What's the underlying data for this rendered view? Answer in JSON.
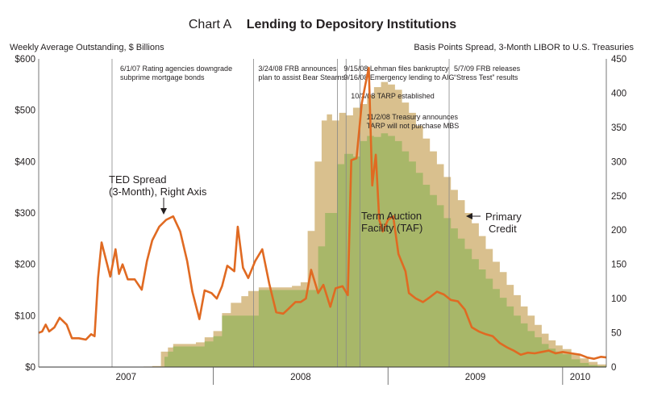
{
  "header": {
    "chart_label": "Chart A",
    "chart_title": "Lending to Depository Institutions",
    "left_axis_caption": "Weekly Average Outstanding, $ Billions",
    "right_axis_caption": "Basis Points Spread, 3-Month LIBOR to U.S. Treasuries"
  },
  "colors": {
    "primary_credit": "#d9c08e",
    "taf": "#a8b769",
    "ted": "#e06a22",
    "event_line": "#888888"
  },
  "chart_data": {
    "type": "area",
    "title": "Lending to Depository Institutions",
    "ylabel": "Weekly Average Outstanding, $ Billions",
    "y2label": "Basis Points Spread, 3-Month LIBOR to U.S. Treasuries",
    "xlim": [
      2007.0,
      2010.25
    ],
    "ylim": [
      0,
      600
    ],
    "y2lim": [
      0,
      450
    ],
    "left_ticks": [
      {
        "v": 0,
        "label": "$0"
      },
      {
        "v": 100,
        "label": "$100"
      },
      {
        "v": 200,
        "label": "$200"
      },
      {
        "v": 300,
        "label": "$300"
      },
      {
        "v": 400,
        "label": "$400"
      },
      {
        "v": 500,
        "label": "$500"
      },
      {
        "v": 600,
        "label": "$600"
      }
    ],
    "right_ticks": [
      {
        "v": 0,
        "label": "0"
      },
      {
        "v": 50,
        "label": "50"
      },
      {
        "v": 100,
        "label": "100"
      },
      {
        "v": 150,
        "label": "150"
      },
      {
        "v": 200,
        "label": "200"
      },
      {
        "v": 250,
        "label": "250"
      },
      {
        "v": 300,
        "label": "300"
      },
      {
        "v": 350,
        "label": "350"
      },
      {
        "v": 400,
        "label": "400"
      },
      {
        "v": 450,
        "label": "450"
      }
    ],
    "year_labels": [
      {
        "x": 2007.5,
        "label": "2007"
      },
      {
        "x": 2008.5,
        "label": "2008"
      },
      {
        "x": 2009.5,
        "label": "2009"
      },
      {
        "x": 2010.1,
        "label": "2010"
      }
    ],
    "year_boundaries": [
      2008.0,
      2009.0,
      2010.0
    ],
    "grid": false,
    "series": [
      {
        "name": "Primary Credit",
        "kind": "area",
        "axis": "left",
        "points": [
          [
            2007.0,
            0
          ],
          [
            2007.45,
            0
          ],
          [
            2007.6,
            1
          ],
          [
            2007.65,
            2
          ],
          [
            2007.7,
            30
          ],
          [
            2007.74,
            38
          ],
          [
            2007.77,
            45
          ],
          [
            2007.9,
            48
          ],
          [
            2007.95,
            58
          ],
          [
            2008.0,
            70
          ],
          [
            2008.05,
            105
          ],
          [
            2008.1,
            125
          ],
          [
            2008.16,
            138
          ],
          [
            2008.2,
            148
          ],
          [
            2008.26,
            155
          ],
          [
            2008.45,
            158
          ],
          [
            2008.5,
            165
          ],
          [
            2008.54,
            265
          ],
          [
            2008.58,
            400
          ],
          [
            2008.62,
            480
          ],
          [
            2008.65,
            492
          ],
          [
            2008.68,
            480
          ],
          [
            2008.72,
            495
          ],
          [
            2008.76,
            490
          ],
          [
            2008.8,
            505
          ],
          [
            2008.84,
            512
          ],
          [
            2008.88,
            530
          ],
          [
            2008.92,
            545
          ],
          [
            2008.96,
            555
          ],
          [
            2009.0,
            550
          ],
          [
            2009.04,
            540
          ],
          [
            2009.08,
            515
          ],
          [
            2009.12,
            495
          ],
          [
            2009.16,
            470
          ],
          [
            2009.2,
            445
          ],
          [
            2009.24,
            420
          ],
          [
            2009.28,
            395
          ],
          [
            2009.32,
            370
          ],
          [
            2009.36,
            345
          ],
          [
            2009.4,
            325
          ],
          [
            2009.44,
            300
          ],
          [
            2009.48,
            280
          ],
          [
            2009.52,
            255
          ],
          [
            2009.56,
            230
          ],
          [
            2009.6,
            205
          ],
          [
            2009.64,
            185
          ],
          [
            2009.68,
            160
          ],
          [
            2009.72,
            140
          ],
          [
            2009.76,
            118
          ],
          [
            2009.8,
            100
          ],
          [
            2009.84,
            82
          ],
          [
            2009.88,
            65
          ],
          [
            2009.92,
            52
          ],
          [
            2009.96,
            42
          ],
          [
            2010.0,
            35
          ],
          [
            2010.05,
            25
          ],
          [
            2010.1,
            17
          ],
          [
            2010.15,
            10
          ],
          [
            2010.2,
            5
          ],
          [
            2010.25,
            3
          ]
        ]
      },
      {
        "name": "Term Auction Facility (TAF)",
        "kind": "area",
        "axis": "left",
        "points": [
          [
            2007.0,
            0
          ],
          [
            2007.7,
            0
          ],
          [
            2007.72,
            20
          ],
          [
            2007.74,
            30
          ],
          [
            2007.77,
            40
          ],
          [
            2007.9,
            40
          ],
          [
            2007.95,
            50
          ],
          [
            2008.0,
            60
          ],
          [
            2008.05,
            100
          ],
          [
            2008.2,
            100
          ],
          [
            2008.26,
            150
          ],
          [
            2008.45,
            150
          ],
          [
            2008.5,
            150
          ],
          [
            2008.56,
            150
          ],
          [
            2008.6,
            235
          ],
          [
            2008.64,
            300
          ],
          [
            2008.68,
            300
          ],
          [
            2008.71,
            395
          ],
          [
            2008.75,
            415
          ],
          [
            2008.8,
            410
          ],
          [
            2008.84,
            440
          ],
          [
            2008.88,
            450
          ],
          [
            2008.92,
            448
          ],
          [
            2008.96,
            455
          ],
          [
            2009.0,
            450
          ],
          [
            2009.04,
            440
          ],
          [
            2009.08,
            420
          ],
          [
            2009.12,
            400
          ],
          [
            2009.16,
            378
          ],
          [
            2009.2,
            355
          ],
          [
            2009.24,
            335
          ],
          [
            2009.28,
            315
          ],
          [
            2009.32,
            290
          ],
          [
            2009.36,
            270
          ],
          [
            2009.4,
            250
          ],
          [
            2009.44,
            230
          ],
          [
            2009.48,
            210
          ],
          [
            2009.52,
            190
          ],
          [
            2009.56,
            172
          ],
          [
            2009.6,
            152
          ],
          [
            2009.64,
            135
          ],
          [
            2009.68,
            118
          ],
          [
            2009.72,
            100
          ],
          [
            2009.76,
            85
          ],
          [
            2009.8,
            70
          ],
          [
            2009.84,
            58
          ],
          [
            2009.88,
            45
          ],
          [
            2009.92,
            36
          ],
          [
            2009.96,
            30
          ],
          [
            2010.0,
            25
          ],
          [
            2010.05,
            15
          ],
          [
            2010.1,
            8
          ],
          [
            2010.15,
            4
          ],
          [
            2010.2,
            2
          ],
          [
            2010.25,
            1
          ]
        ]
      },
      {
        "name": "TED Spread (3-Month), Right Axis",
        "kind": "line",
        "axis": "right",
        "points": [
          [
            2007.0,
            50
          ],
          [
            2007.02,
            52
          ],
          [
            2007.04,
            62
          ],
          [
            2007.06,
            52
          ],
          [
            2007.09,
            58
          ],
          [
            2007.12,
            72
          ],
          [
            2007.16,
            62
          ],
          [
            2007.19,
            42
          ],
          [
            2007.23,
            42
          ],
          [
            2007.27,
            40
          ],
          [
            2007.3,
            48
          ],
          [
            2007.32,
            45
          ],
          [
            2007.34,
            130
          ],
          [
            2007.36,
            182
          ],
          [
            2007.38,
            162
          ],
          [
            2007.41,
            132
          ],
          [
            2007.44,
            172
          ],
          [
            2007.46,
            136
          ],
          [
            2007.48,
            150
          ],
          [
            2007.51,
            128
          ],
          [
            2007.55,
            128
          ],
          [
            2007.59,
            113
          ],
          [
            2007.62,
            155
          ],
          [
            2007.65,
            185
          ],
          [
            2007.69,
            205
          ],
          [
            2007.73,
            215
          ],
          [
            2007.77,
            220
          ],
          [
            2007.81,
            198
          ],
          [
            2007.85,
            155
          ],
          [
            2007.88,
            110
          ],
          [
            2007.92,
            70
          ],
          [
            2007.95,
            112
          ],
          [
            2007.99,
            108
          ],
          [
            2008.02,
            100
          ],
          [
            2008.05,
            118
          ],
          [
            2008.08,
            148
          ],
          [
            2008.12,
            140
          ],
          [
            2008.14,
            205
          ],
          [
            2008.17,
            145
          ],
          [
            2008.2,
            130
          ],
          [
            2008.24,
            155
          ],
          [
            2008.28,
            172
          ],
          [
            2008.32,
            122
          ],
          [
            2008.36,
            80
          ],
          [
            2008.4,
            78
          ],
          [
            2008.43,
            85
          ],
          [
            2008.47,
            95
          ],
          [
            2008.5,
            95
          ],
          [
            2008.53,
            100
          ],
          [
            2008.56,
            142
          ],
          [
            2008.6,
            108
          ],
          [
            2008.63,
            120
          ],
          [
            2008.67,
            88
          ],
          [
            2008.7,
            115
          ],
          [
            2008.74,
            118
          ],
          [
            2008.77,
            105
          ],
          [
            2008.79,
            302
          ],
          [
            2008.82,
            305
          ],
          [
            2008.85,
            385
          ],
          [
            2008.87,
            412
          ],
          [
            2008.89,
            437
          ],
          [
            2008.91,
            265
          ],
          [
            2008.93,
            310
          ],
          [
            2008.95,
            215
          ],
          [
            2008.97,
            198
          ],
          [
            2009.0,
            215
          ],
          [
            2009.03,
            220
          ],
          [
            2009.06,
            165
          ],
          [
            2009.1,
            140
          ],
          [
            2009.12,
            108
          ],
          [
            2009.16,
            100
          ],
          [
            2009.2,
            95
          ],
          [
            2009.24,
            102
          ],
          [
            2009.28,
            110
          ],
          [
            2009.32,
            106
          ],
          [
            2009.36,
            98
          ],
          [
            2009.4,
            96
          ],
          [
            2009.44,
            84
          ],
          [
            2009.48,
            58
          ],
          [
            2009.52,
            52
          ],
          [
            2009.56,
            48
          ],
          [
            2009.6,
            45
          ],
          [
            2009.64,
            35
          ],
          [
            2009.68,
            29
          ],
          [
            2009.72,
            24
          ],
          [
            2009.76,
            18
          ],
          [
            2009.8,
            21
          ],
          [
            2009.84,
            20
          ],
          [
            2009.88,
            22
          ],
          [
            2009.92,
            24
          ],
          [
            2009.96,
            20
          ],
          [
            2010.0,
            22
          ],
          [
            2010.05,
            20
          ],
          [
            2010.1,
            18
          ],
          [
            2010.14,
            14
          ],
          [
            2010.18,
            12
          ],
          [
            2010.22,
            15
          ],
          [
            2010.25,
            14
          ]
        ]
      }
    ],
    "series_labels": [
      {
        "key": "ted",
        "lines": [
          "TED Spread",
          "(3-Month), Right Axis"
        ]
      },
      {
        "key": "taf",
        "lines": [
          "Term Auction",
          "Facility (TAF)"
        ]
      },
      {
        "key": "pc",
        "lines": [
          "Primary",
          "Credit"
        ]
      }
    ],
    "events": [
      {
        "x": 2007.42,
        "lines": [
          "6/1/07 Rating agencies downgrade",
          "subprime mortgage bonds"
        ]
      },
      {
        "x": 2008.23,
        "lines": [
          "3/24/08 FRB announces",
          "plan to assist Bear Stearns"
        ]
      },
      {
        "x": 2008.71,
        "lines": [
          "9/15/08 Lehman files bankruptcy",
          "9/16/08 Emergency lending to AIG"
        ]
      },
      {
        "x": 2008.76,
        "lines": [
          "10/3/08 TARP established"
        ]
      },
      {
        "x": 2008.84,
        "lines": [
          "11/2/08 Treasury announces",
          "TARP will not purchase MBS"
        ]
      },
      {
        "x": 2009.35,
        "lines": [
          "5/7/09 FRB releases",
          "“Stress Test” results"
        ]
      }
    ]
  }
}
